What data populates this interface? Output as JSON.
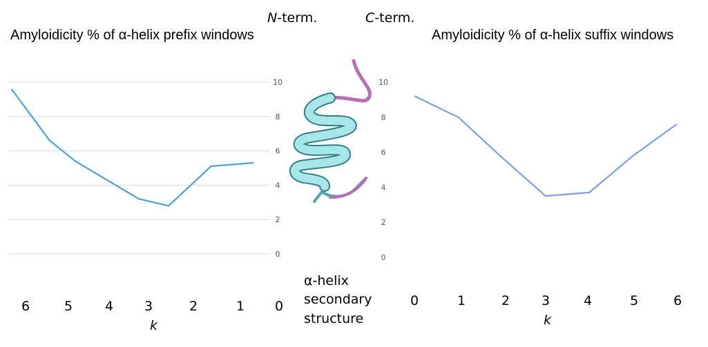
{
  "labels": {
    "n_term": "N-term.",
    "c_term": "C-term.",
    "caption": [
      "α-helix",
      "secondary",
      "structure"
    ]
  },
  "chart_data": [
    {
      "type": "line",
      "title": "Amyloidicity % of α-helix prefix windows",
      "xlabel": "k",
      "x_ticks": [
        "6",
        "5",
        "4",
        "3",
        "2",
        "1",
        "0"
      ],
      "y_ticks": [
        "10",
        "8",
        "6",
        "4",
        "2",
        "0"
      ],
      "ylim": [
        0,
        10
      ],
      "x": [
        6.3,
        5.4,
        4.8,
        3.3,
        2.6,
        1.6,
        0.6
      ],
      "values": [
        9.6,
        6.6,
        5.4,
        3.2,
        2.8,
        5.1,
        5.3
      ],
      "color": "#4aa0d8",
      "grid": true
    },
    {
      "type": "line",
      "title": "Amyloidicity % of α-helix suffix windows",
      "xlabel": "k",
      "x_ticks": [
        "0",
        "1",
        "2",
        "3",
        "4",
        "5",
        "6"
      ],
      "y_ticks": [
        "10",
        "8",
        "6",
        "4",
        "2",
        "0"
      ],
      "ylim": [
        0,
        10
      ],
      "x": [
        0,
        1,
        2,
        3,
        4,
        5,
        6
      ],
      "values": [
        9.2,
        8.0,
        5.7,
        3.5,
        3.7,
        5.8,
        7.6
      ],
      "color": "#7a9fd9",
      "grid": false
    }
  ]
}
